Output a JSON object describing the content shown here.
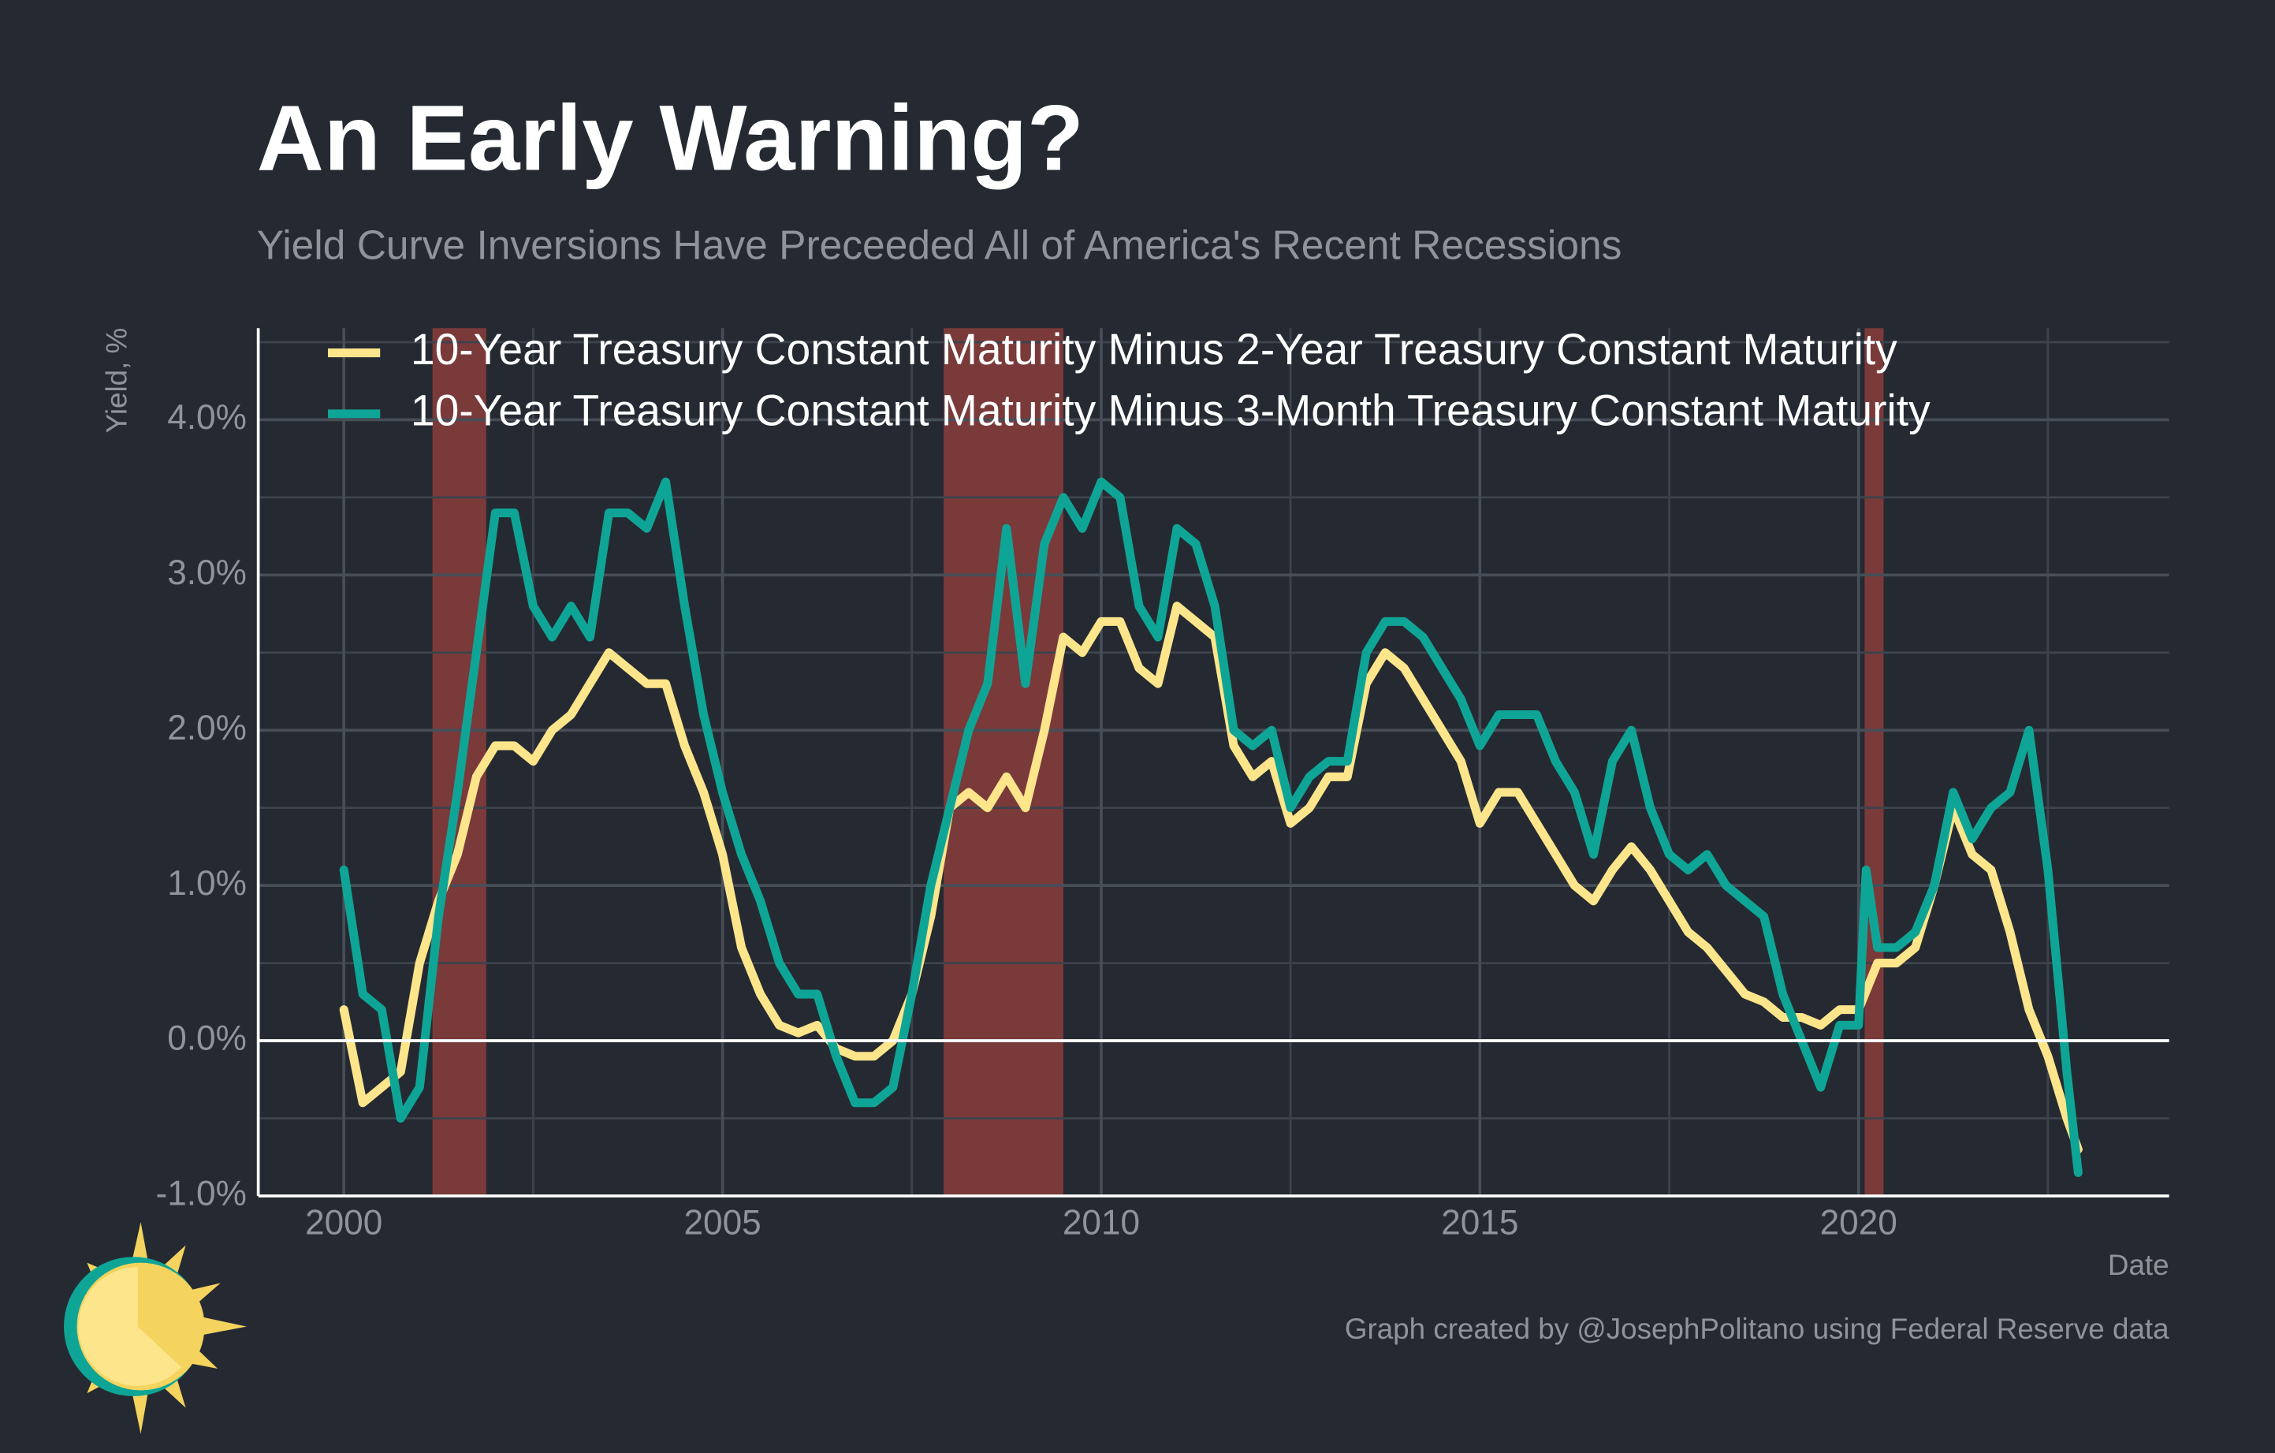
{
  "chart_data": {
    "type": "line",
    "title": "An Early Warning?",
    "subtitle": "Yield Curve Inversions Have Preceeded All of America's Recent Recessions",
    "y_label": "Yield, %",
    "x_label": "Date",
    "caption": "Graph created by @JosephPolitano using Federal Reserve data",
    "xlim": [
      1998.87,
      2024.1
    ],
    "ylim": [
      -1.0,
      4.59
    ],
    "xticks": [
      2000,
      2005,
      2010,
      2015,
      2020
    ],
    "yticks": [
      {
        "value": -1,
        "label": "-1.0%"
      },
      {
        "value": 0,
        "label": "0.0%"
      },
      {
        "value": 1,
        "label": "1.0%"
      },
      {
        "value": 2,
        "label": "2.0%"
      },
      {
        "value": 3,
        "label": "3.0%"
      },
      {
        "value": 4,
        "label": "4.0%"
      }
    ],
    "grid": true,
    "minor_grid": true,
    "hline": 0,
    "legend": "top-left",
    "recession_color": "#7a3a3a",
    "recessions": [
      [
        2001.17,
        2001.88
      ],
      [
        2007.92,
        2009.5
      ],
      [
        2020.08,
        2020.33
      ]
    ],
    "series": [
      {
        "name": "10-Year Treasury Constant Maturity Minus 2-Year Treasury Constant Maturity",
        "color": "#fde58b",
        "x": [
          2000.0,
          2000.25,
          2000.5,
          2000.75,
          2001.0,
          2001.25,
          2001.5,
          2001.75,
          2002.0,
          2002.25,
          2002.5,
          2002.75,
          2003.0,
          2003.25,
          2003.5,
          2003.75,
          2004.0,
          2004.25,
          2004.5,
          2004.75,
          2005.0,
          2005.25,
          2005.5,
          2005.75,
          2006.0,
          2006.25,
          2006.5,
          2006.75,
          2007.0,
          2007.25,
          2007.5,
          2007.75,
          2008.0,
          2008.25,
          2008.5,
          2008.75,
          2009.0,
          2009.25,
          2009.5,
          2009.75,
          2010.0,
          2010.25,
          2010.5,
          2010.75,
          2011.0,
          2011.25,
          2011.5,
          2011.75,
          2012.0,
          2012.25,
          2012.5,
          2012.75,
          2013.0,
          2013.25,
          2013.5,
          2013.75,
          2014.0,
          2014.25,
          2014.5,
          2014.75,
          2015.0,
          2015.25,
          2015.5,
          2015.75,
          2016.0,
          2016.25,
          2016.5,
          2016.75,
          2017.0,
          2017.25,
          2017.5,
          2017.75,
          2018.0,
          2018.25,
          2018.5,
          2018.75,
          2019.0,
          2019.25,
          2019.5,
          2019.75,
          2020.0,
          2020.25,
          2020.5,
          2020.75,
          2021.0,
          2021.25,
          2021.5,
          2021.75,
          2022.0,
          2022.25,
          2022.5,
          2022.75,
          2022.9
        ],
        "values": [
          0.2,
          -0.4,
          -0.3,
          -0.2,
          0.5,
          0.9,
          1.2,
          1.7,
          1.9,
          1.9,
          1.8,
          2.0,
          2.1,
          2.3,
          2.5,
          2.4,
          2.3,
          2.3,
          1.9,
          1.6,
          1.2,
          0.6,
          0.3,
          0.1,
          0.05,
          0.1,
          -0.05,
          -0.1,
          -0.1,
          0.0,
          0.3,
          0.8,
          1.5,
          1.6,
          1.5,
          1.7,
          1.5,
          2.0,
          2.6,
          2.5,
          2.7,
          2.7,
          2.4,
          2.3,
          2.8,
          2.7,
          2.6,
          1.9,
          1.7,
          1.8,
          1.4,
          1.5,
          1.7,
          1.7,
          2.3,
          2.5,
          2.4,
          2.2,
          2.0,
          1.8,
          1.4,
          1.6,
          1.6,
          1.4,
          1.2,
          1.0,
          0.9,
          1.1,
          1.25,
          1.1,
          0.9,
          0.7,
          0.6,
          0.45,
          0.3,
          0.25,
          0.15,
          0.15,
          0.1,
          0.2,
          0.2,
          0.5,
          0.5,
          0.6,
          1.0,
          1.5,
          1.2,
          1.1,
          0.7,
          0.2,
          -0.1,
          -0.5,
          -0.7
        ]
      },
      {
        "name": "10-Year Treasury Constant Maturity Minus 3-Month Treasury Constant Maturity",
        "color": "#0fa596",
        "x": [
          2000.0,
          2000.25,
          2000.5,
          2000.75,
          2001.0,
          2001.25,
          2001.5,
          2001.75,
          2002.0,
          2002.25,
          2002.5,
          2002.75,
          2003.0,
          2003.25,
          2003.5,
          2003.75,
          2004.0,
          2004.25,
          2004.5,
          2004.75,
          2005.0,
          2005.25,
          2005.5,
          2005.75,
          2006.0,
          2006.25,
          2006.5,
          2006.75,
          2007.0,
          2007.25,
          2007.5,
          2007.75,
          2008.0,
          2008.25,
          2008.5,
          2008.75,
          2009.0,
          2009.25,
          2009.5,
          2009.75,
          2010.0,
          2010.25,
          2010.5,
          2010.75,
          2011.0,
          2011.25,
          2011.5,
          2011.75,
          2012.0,
          2012.25,
          2012.5,
          2012.75,
          2013.0,
          2013.25,
          2013.5,
          2013.75,
          2014.0,
          2014.25,
          2014.5,
          2014.75,
          2015.0,
          2015.25,
          2015.5,
          2015.75,
          2016.0,
          2016.25,
          2016.5,
          2016.75,
          2017.0,
          2017.25,
          2017.5,
          2017.75,
          2018.0,
          2018.25,
          2018.5,
          2018.75,
          2019.0,
          2019.25,
          2019.5,
          2019.75,
          2020.0,
          2020.1,
          2020.25,
          2020.5,
          2020.75,
          2021.0,
          2021.25,
          2021.5,
          2021.75,
          2022.0,
          2022.25,
          2022.5,
          2022.75,
          2022.9
        ],
        "values": [
          1.1,
          0.3,
          0.2,
          -0.5,
          -0.3,
          0.8,
          1.6,
          2.5,
          3.4,
          3.4,
          2.8,
          2.6,
          2.8,
          2.6,
          3.4,
          3.4,
          3.3,
          3.6,
          2.8,
          2.1,
          1.6,
          1.2,
          0.9,
          0.5,
          0.3,
          0.3,
          -0.1,
          -0.4,
          -0.4,
          -0.3,
          0.3,
          1.0,
          1.5,
          2.0,
          2.3,
          3.3,
          2.3,
          3.2,
          3.5,
          3.3,
          3.6,
          3.5,
          2.8,
          2.6,
          3.3,
          3.2,
          2.8,
          2.0,
          1.9,
          2.0,
          1.5,
          1.7,
          1.8,
          1.8,
          2.5,
          2.7,
          2.7,
          2.6,
          2.4,
          2.2,
          1.9,
          2.1,
          2.1,
          2.1,
          1.8,
          1.6,
          1.2,
          1.8,
          2.0,
          1.5,
          1.2,
          1.1,
          1.2,
          1.0,
          0.9,
          0.8,
          0.3,
          0.0,
          -0.3,
          0.1,
          0.1,
          1.1,
          0.6,
          0.6,
          0.7,
          1.0,
          1.6,
          1.3,
          1.5,
          1.6,
          2.0,
          1.1,
          -0.2,
          -0.85
        ]
      }
    ]
  }
}
